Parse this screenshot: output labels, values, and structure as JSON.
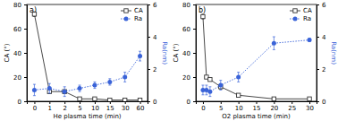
{
  "chart_data": [
    {
      "type": "line",
      "title": "a)",
      "x_label": "He plasma time (min)",
      "y_label": "CA (°)",
      "y2_label": "Ra(nm)",
      "categories": [
        "0",
        "1",
        "2",
        "5",
        "10",
        "15",
        "30",
        "60"
      ],
      "ylim": [
        0,
        80
      ],
      "yticks": [
        0,
        20,
        40,
        60,
        80
      ],
      "y2lim": [
        0,
        6
      ],
      "y2ticks": [
        0,
        2,
        4,
        6
      ],
      "legend": "upper right",
      "series": [
        {
          "name": "CA",
          "color": "#333333",
          "marker": "square",
          "line_style": "solid",
          "values": [
            72,
            8,
            8,
            2,
            2,
            1,
            1,
            1
          ],
          "errors": [
            2,
            1,
            1,
            0.5,
            0.5,
            0.5,
            0.5,
            0.5
          ]
        },
        {
          "name": "Ra",
          "color": "#3a63d8",
          "marker": "circle",
          "line_style": "dotted",
          "axis": "y2",
          "values": [
            0.7,
            0.8,
            0.6,
            0.8,
            1.0,
            1.2,
            1.5,
            2.8
          ],
          "errors": [
            0.35,
            0.3,
            0.3,
            0.2,
            0.2,
            0.2,
            0.3,
            0.3
          ]
        }
      ]
    },
    {
      "type": "line",
      "title": "b)",
      "x_label": "O2 plasma time (min)",
      "y_label": "CA (°)",
      "y2_label": "Ra(nm)",
      "x": [
        0,
        1,
        2,
        5,
        10,
        20,
        30
      ],
      "xlim": [
        -2,
        32
      ],
      "xticks": [
        0,
        5,
        10,
        15,
        20,
        25,
        30
      ],
      "ylim": [
        0,
        80
      ],
      "yticks": [
        0,
        20,
        40,
        60,
        80
      ],
      "y2lim": [
        0,
        6
      ],
      "y2ticks": [
        0,
        2,
        4,
        6
      ],
      "legend": "upper right",
      "series": [
        {
          "name": "CA",
          "color": "#333333",
          "marker": "square",
          "line_style": "solid",
          "values": [
            70,
            20,
            18,
            12,
            5,
            2,
            2
          ],
          "errors": [
            2,
            1,
            1,
            2,
            1,
            0.5,
            0.5
          ]
        },
        {
          "name": "Ra",
          "color": "#3a63d8",
          "marker": "circle",
          "line_style": "dotted",
          "axis": "y2",
          "values": [
            0.7,
            0.7,
            0.6,
            1.0,
            1.5,
            3.6,
            3.8
          ],
          "errors": [
            0.3,
            0.3,
            0.3,
            0.3,
            0.3,
            0.4,
            0.1
          ]
        }
      ]
    }
  ]
}
